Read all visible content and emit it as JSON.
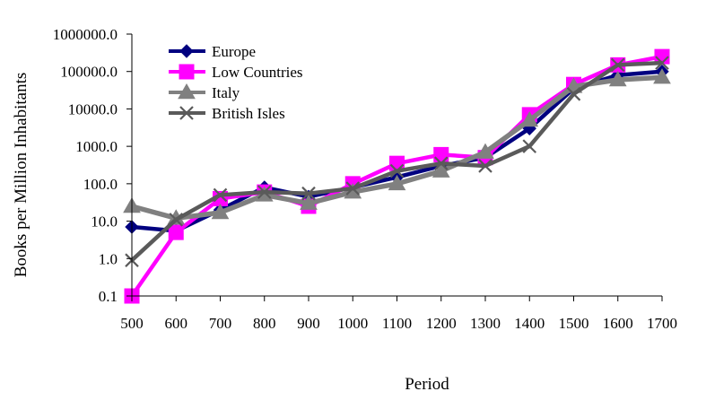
{
  "chart_data": {
    "type": "line",
    "title": "",
    "xlabel": "Period",
    "ylabel": "Books per Million Inhabitants",
    "yscale": "log",
    "ylim": [
      0.1,
      1000000
    ],
    "y_ticks": [
      "0.1",
      "1.0",
      "10.0",
      "100.0",
      "1000.0",
      "10000.0",
      "100000.0",
      "1000000.0"
    ],
    "categories": [
      "500",
      "600",
      "700",
      "800",
      "900",
      "1000",
      "1100",
      "1200",
      "1300",
      "1400",
      "1500",
      "1600",
      "1700"
    ],
    "legend_position": "top-left",
    "series": [
      {
        "name": "Europe",
        "color": "#000080",
        "marker": "diamond",
        "values": [
          7,
          5.5,
          20,
          80,
          45,
          80,
          150,
          300,
          500,
          3000,
          35000,
          80000,
          100000
        ]
      },
      {
        "name": "Low Countries",
        "color": "#ff00ff",
        "marker": "square",
        "values": [
          0.1,
          5,
          40,
          60,
          25,
          100,
          350,
          600,
          500,
          7000,
          45000,
          150000,
          250000
        ]
      },
      {
        "name": "Italy",
        "color": "#808080",
        "marker": "triangle",
        "values": [
          25,
          12,
          17,
          50,
          30,
          60,
          100,
          220,
          700,
          5000,
          40000,
          60000,
          70000
        ]
      },
      {
        "name": "British Isles",
        "color": "#5a5a5a",
        "marker": "x",
        "values": [
          0.9,
          11,
          50,
          60,
          55,
          75,
          220,
          350,
          300,
          1000,
          25000,
          150000,
          170000
        ]
      }
    ]
  }
}
